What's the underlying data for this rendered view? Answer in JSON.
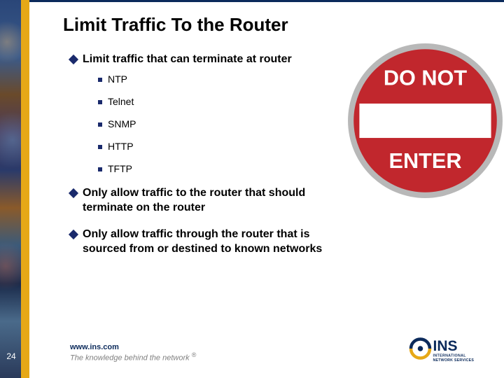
{
  "colors": {
    "gold": "#e6a817",
    "navy": "#0b2a5b",
    "bullet1": "#1a2a6c",
    "bullet2": "#1a2a6c",
    "text": "#000000",
    "footer_gray": "#808080",
    "sign_red": "#c1272d",
    "sign_white": "#ffffff",
    "sign_silver": "#b8b8b8"
  },
  "slide": {
    "title": "Limit Traffic To the Router",
    "bullets": [
      {
        "text": "Limit traffic that can terminate at router",
        "sub": [
          "NTP",
          "Telnet",
          "SNMP",
          "HTTP",
          "TFTP"
        ]
      },
      {
        "text": "Only allow traffic to the router that should terminate on the router",
        "sub": []
      },
      {
        "text": "Only allow traffic through the router that is sourced from or destined to known networks",
        "sub": []
      }
    ],
    "sign": {
      "line1": "DO NOT",
      "line2": "ENTER"
    },
    "footer": {
      "url": "www.ins.com",
      "tagline_pre": "The knowledge behind the network",
      "tagline_reg": "®"
    },
    "page_number": "24",
    "logo": {
      "big": "INS",
      "sub_top": "INTERNATIONAL",
      "sub_bottom": "NETWORK SERVICES"
    }
  },
  "fonts": {
    "title_size": 26,
    "b1_size": 16,
    "b2_size": 14,
    "footer_size": 11
  }
}
